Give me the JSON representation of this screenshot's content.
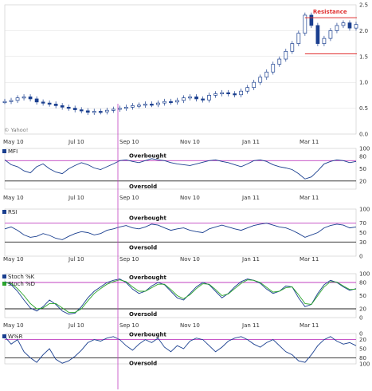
{
  "chart_data": [
    {
      "type": "candlestick",
      "source_label": "© Yahoo!",
      "x_labels": [
        "May 10",
        "Jul 10",
        "Sep 10",
        "Nov 10",
        "Jan 11",
        "Mar 11"
      ],
      "y_ticks": [
        "0.0",
        "0.5",
        "1.0",
        "1.5",
        "2.0",
        "2.5"
      ],
      "ylim": [
        0,
        2.5
      ],
      "annotation": {
        "label": "Resistance",
        "levels": [
          2.25,
          1.55
        ]
      },
      "series": [
        {
          "name": "price",
          "values": [
            0.63,
            0.65,
            0.7,
            0.72,
            0.68,
            0.62,
            0.6,
            0.58,
            0.55,
            0.52,
            0.5,
            0.47,
            0.45,
            0.42,
            0.44,
            0.43,
            0.46,
            0.48,
            0.5,
            0.52,
            0.55,
            0.56,
            0.58,
            0.57,
            0.6,
            0.63,
            0.62,
            0.65,
            0.7,
            0.72,
            0.68,
            0.66,
            0.75,
            0.78,
            0.8,
            0.78,
            0.76,
            0.83,
            0.9,
            1.0,
            1.1,
            1.2,
            1.35,
            1.45,
            1.6,
            1.75,
            1.95,
            2.3,
            2.1,
            1.75,
            1.85,
            2.0,
            2.1,
            2.15,
            2.05,
            2.12
          ]
        }
      ]
    },
    {
      "type": "line",
      "legend": [
        "MFI"
      ],
      "y_ticks": [
        "100",
        "80",
        "50",
        "20"
      ],
      "ylim": [
        0,
        100
      ],
      "bands": {
        "overbought": 70,
        "oversold": 20
      },
      "band_labels": {
        "overbought": "Overbought",
        "oversold": "Oversold"
      },
      "series": [
        {
          "name": "MFI",
          "values": [
            72,
            60,
            55,
            45,
            40,
            55,
            62,
            50,
            42,
            38,
            50,
            58,
            65,
            60,
            52,
            48,
            55,
            62,
            70,
            72,
            68,
            65,
            70,
            75,
            72,
            70,
            65,
            62,
            60,
            58,
            62,
            66,
            70,
            72,
            68,
            65,
            60,
            55,
            62,
            70,
            72,
            68,
            60,
            55,
            52,
            48,
            38,
            25,
            30,
            45,
            62,
            68,
            72,
            70,
            65,
            68
          ]
        }
      ]
    },
    {
      "type": "line",
      "legend": [
        "RSI"
      ],
      "y_ticks": [
        "100",
        "70",
        "50",
        "30",
        "0"
      ],
      "ylim": [
        0,
        100
      ],
      "bands": {
        "overbought": 70,
        "oversold": 30
      },
      "band_labels": {
        "overbought": "Overbought",
        "oversold": "Oversold"
      },
      "series": [
        {
          "name": "RSI",
          "values": [
            58,
            62,
            55,
            45,
            40,
            42,
            48,
            44,
            38,
            35,
            42,
            48,
            52,
            50,
            45,
            48,
            55,
            58,
            62,
            65,
            60,
            58,
            62,
            68,
            66,
            60,
            55,
            58,
            60,
            55,
            52,
            50,
            58,
            62,
            66,
            62,
            58,
            55,
            60,
            65,
            68,
            70,
            66,
            62,
            60,
            55,
            48,
            40,
            45,
            50,
            60,
            65,
            68,
            66,
            60,
            62
          ]
        }
      ]
    },
    {
      "type": "line",
      "legend": [
        "Stoch %K",
        "Stoch %D"
      ],
      "colors": [
        "#1a3f8f",
        "#2aa52a"
      ],
      "y_ticks": [
        "100",
        "80",
        "50",
        "20",
        "0"
      ],
      "ylim": [
        0,
        100
      ],
      "bands": {
        "overbought": 80,
        "oversold": 20
      },
      "band_labels": {
        "overbought": "Overbought",
        "oversold": "Oversold"
      },
      "series": [
        {
          "name": "Stoch %K",
          "values": [
            82,
            75,
            60,
            40,
            22,
            15,
            25,
            40,
            30,
            15,
            8,
            10,
            25,
            45,
            60,
            70,
            80,
            85,
            88,
            80,
            65,
            55,
            60,
            72,
            80,
            75,
            60,
            45,
            40,
            55,
            70,
            80,
            75,
            60,
            45,
            55,
            70,
            82,
            88,
            85,
            78,
            65,
            55,
            60,
            72,
            70,
            45,
            25,
            30,
            55,
            75,
            85,
            80,
            70,
            62,
            66
          ]
        },
        {
          "name": "Stoch %D",
          "values": [
            80,
            78,
            66,
            50,
            32,
            20,
            22,
            32,
            32,
            22,
            12,
            12,
            20,
            38,
            55,
            66,
            76,
            82,
            86,
            82,
            70,
            60,
            60,
            68,
            76,
            76,
            64,
            50,
            43,
            52,
            66,
            77,
            76,
            64,
            50,
            54,
            66,
            78,
            86,
            85,
            80,
            69,
            58,
            60,
            68,
            70,
            52,
            32,
            30,
            50,
            70,
            82,
            81,
            72,
            64,
            65
          ]
        }
      ]
    },
    {
      "type": "line",
      "legend": [
        "W%R"
      ],
      "y_ticks": [
        "0",
        "20",
        "50",
        "80",
        "100"
      ],
      "ylim": [
        0,
        100
      ],
      "inverted": true,
      "bands": {
        "overbought": 20,
        "oversold": 80
      },
      "band_labels": {
        "overbought": "Overbought",
        "oversold": "Oversold"
      },
      "series": [
        {
          "name": "W%R",
          "values": [
            10,
            35,
            20,
            60,
            80,
            95,
            70,
            50,
            85,
            98,
            90,
            75,
            55,
            30,
            20,
            25,
            15,
            10,
            20,
            40,
            55,
            35,
            20,
            30,
            15,
            45,
            60,
            40,
            50,
            25,
            15,
            20,
            40,
            60,
            45,
            25,
            15,
            10,
            20,
            35,
            45,
            30,
            20,
            40,
            60,
            70,
            90,
            95,
            70,
            40,
            20,
            10,
            25,
            35,
            30,
            40
          ]
        }
      ]
    }
  ]
}
